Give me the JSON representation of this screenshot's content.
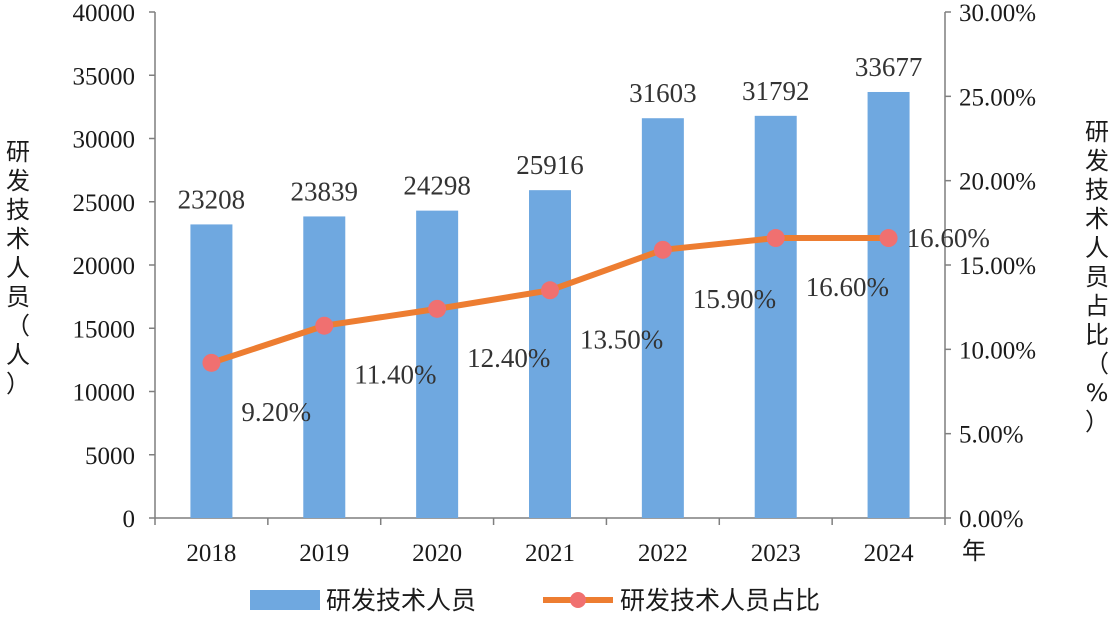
{
  "chart_data": {
    "type": "bar",
    "categories": [
      "2018",
      "2019",
      "2020",
      "2021",
      "2022",
      "2023",
      "2024"
    ],
    "series": [
      {
        "name": "研发技术人员",
        "type": "bar",
        "axis": "left",
        "color": "#6fa8e0",
        "values": [
          23208,
          23839,
          24298,
          25916,
          31603,
          31792,
          33677
        ],
        "labels": [
          "23208",
          "23839",
          "24298",
          "25916",
          "31603",
          "31792",
          "33677"
        ]
      },
      {
        "name": "研发技术人员占比",
        "type": "line",
        "axis": "right",
        "color": "#ed7d31",
        "marker_color": "#f07070",
        "values": [
          9.2,
          11.4,
          12.4,
          13.5,
          15.9,
          16.6,
          16.6
        ],
        "labels": [
          "9.20%",
          "11.40%",
          "12.40%",
          "13.50%",
          "15.90%",
          "16.60%",
          "16.60%"
        ]
      }
    ],
    "xlabel": "年",
    "ylabel": "研发技术人员（人）",
    "y2label": "研发技术人员占比（%）",
    "ylim": [
      0,
      40000
    ],
    "y2lim": [
      0,
      30
    ],
    "yticks": [
      "0",
      "5000",
      "10000",
      "15000",
      "20000",
      "25000",
      "30000",
      "35000",
      "40000"
    ],
    "y2ticks": [
      "0.00%",
      "5.00%",
      "10.00%",
      "15.00%",
      "20.00%",
      "25.00%",
      "30.00%"
    ],
    "grid": false,
    "legend_position": "bottom"
  }
}
